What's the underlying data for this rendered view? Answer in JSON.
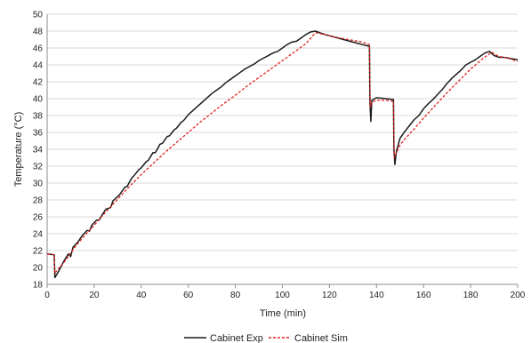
{
  "colors": {
    "exp": "#1a1a1a",
    "sim": "#e0201b",
    "grid": "#d9d9d9",
    "axis": "#8c8c8c"
  },
  "chart_data": {
    "type": "line",
    "title": "",
    "xlabel": "Time (min)",
    "ylabel": "Temperature (°C)",
    "xlim": [
      0,
      200
    ],
    "ylim": [
      18,
      50
    ],
    "xticks": [
      0,
      20,
      40,
      60,
      80,
      100,
      120,
      140,
      160,
      180,
      200
    ],
    "yticks": [
      18,
      20,
      22,
      24,
      26,
      28,
      30,
      32,
      34,
      36,
      38,
      40,
      42,
      44,
      46,
      48,
      50
    ],
    "grid": "horizontal",
    "legend_position": "bottom-center",
    "series": [
      {
        "name": "Cabinet Exp",
        "style": "solid",
        "color": "#1a1a1a",
        "x": [
          0,
          3,
          3.3,
          5,
          7,
          9,
          10,
          11,
          13,
          15,
          17,
          18,
          19,
          21,
          22,
          24,
          25,
          27,
          28,
          30,
          31,
          33,
          34,
          36,
          37,
          39,
          40,
          42,
          43,
          45,
          46,
          48,
          49,
          51,
          52,
          54,
          55,
          57,
          58,
          60,
          62,
          64,
          66,
          68,
          70,
          72,
          74,
          76,
          78,
          80,
          82,
          84,
          86,
          88,
          90,
          92,
          94,
          96,
          98,
          100,
          102,
          104,
          106,
          108,
          110,
          112,
          114,
          115,
          118,
          122,
          126,
          130,
          134,
          137,
          137.2,
          137.6,
          138,
          140,
          144,
          147.2,
          147.4,
          147.8,
          148.5,
          150,
          152,
          154,
          156,
          158,
          160,
          162,
          164,
          166,
          168,
          170,
          172,
          174,
          176,
          178,
          180,
          182,
          184,
          186,
          188,
          190,
          192,
          194,
          196,
          200
        ],
        "y": [
          21.6,
          21.5,
          18.8,
          19.6,
          20.7,
          21.6,
          21.3,
          22.4,
          23.0,
          23.8,
          24.4,
          24.3,
          25.0,
          25.6,
          25.6,
          26.5,
          26.9,
          27.1,
          27.9,
          28.4,
          28.7,
          29.5,
          29.6,
          30.6,
          30.9,
          31.6,
          31.8,
          32.5,
          32.7,
          33.6,
          33.6,
          34.6,
          34.7,
          35.5,
          35.6,
          36.3,
          36.5,
          37.2,
          37.4,
          38.1,
          38.6,
          39.1,
          39.6,
          40.1,
          40.6,
          41.0,
          41.4,
          41.9,
          42.3,
          42.7,
          43.1,
          43.5,
          43.8,
          44.1,
          44.5,
          44.8,
          45.1,
          45.4,
          45.6,
          46.0,
          46.4,
          46.7,
          46.8,
          47.2,
          47.6,
          47.9,
          48.0,
          47.9,
          47.6,
          47.3,
          47.0,
          46.7,
          46.4,
          46.2,
          39.5,
          37.3,
          39.8,
          40.1,
          40.0,
          39.9,
          34.0,
          32.2,
          33.8,
          35.3,
          36.1,
          36.8,
          37.5,
          38.0,
          38.8,
          39.4,
          39.9,
          40.5,
          41.1,
          41.8,
          42.4,
          42.9,
          43.4,
          44.0,
          44.3,
          44.6,
          45.0,
          45.4,
          45.6,
          45.1,
          44.9,
          44.9,
          44.8,
          44.6
        ]
      },
      {
        "name": "Cabinet Sim",
        "style": "dashed",
        "color": "#e0201b",
        "x": [
          0,
          3,
          3.2,
          5,
          8,
          12,
          16,
          20,
          25,
          30,
          35,
          40,
          45,
          50,
          55,
          60,
          65,
          70,
          75,
          80,
          85,
          90,
          95,
          100,
          105,
          110,
          114,
          118,
          122,
          126,
          130,
          134,
          137,
          137.3,
          138,
          140,
          144,
          147.2,
          147.5,
          150,
          152,
          156,
          160,
          165,
          170,
          175,
          180,
          185,
          189,
          192,
          196,
          200
        ],
        "y": [
          21.6,
          21.5,
          19.3,
          19.9,
          20.9,
          22.5,
          23.8,
          25.0,
          26.6,
          28.1,
          29.6,
          31.0,
          32.3,
          33.6,
          34.8,
          36.0,
          37.2,
          38.3,
          39.4,
          40.4,
          41.5,
          42.5,
          43.5,
          44.5,
          45.5,
          46.5,
          47.8,
          47.6,
          47.3,
          47.1,
          46.9,
          46.7,
          46.4,
          39.0,
          39.6,
          39.8,
          39.8,
          39.7,
          33.0,
          34.5,
          35.2,
          36.4,
          37.7,
          39.2,
          40.7,
          42.1,
          43.5,
          44.7,
          45.5,
          45.0,
          44.8,
          44.4
        ]
      }
    ]
  }
}
